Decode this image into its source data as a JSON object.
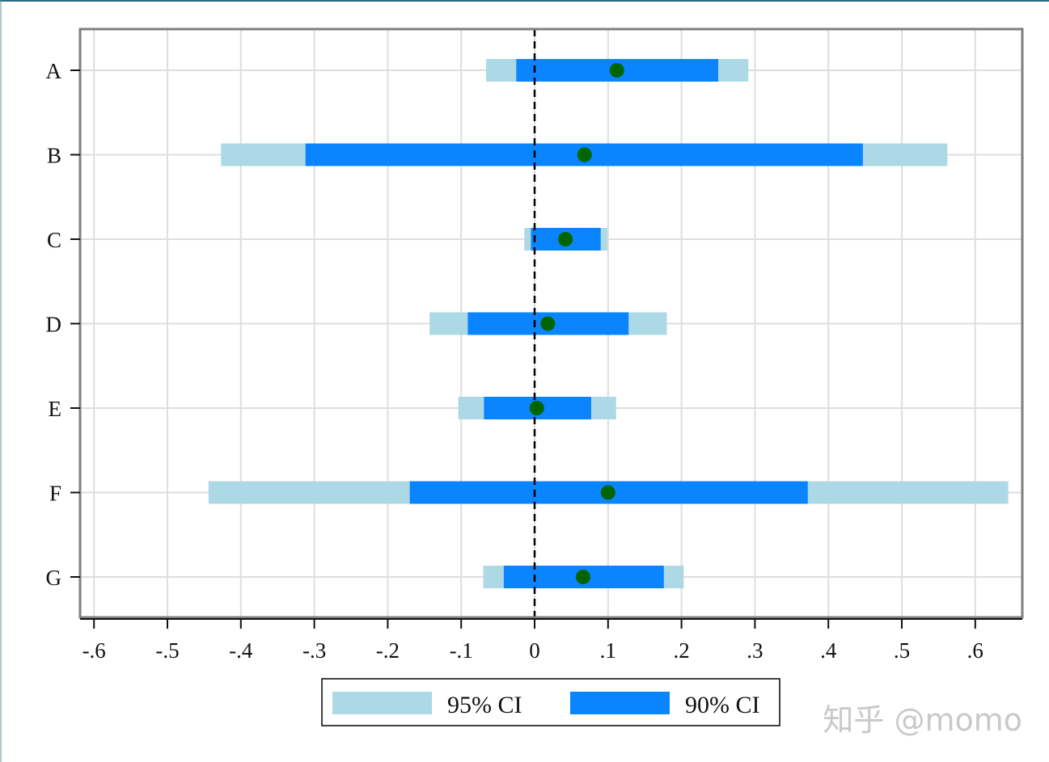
{
  "chart_data": {
    "type": "coefficient-plot",
    "categories": [
      "A",
      "B",
      "C",
      "D",
      "E",
      "F",
      "G"
    ],
    "estimates": [
      0.112,
      0.068,
      0.042,
      0.018,
      0.003,
      0.1,
      0.066
    ],
    "ci95": [
      [
        -0.066,
        0.291
      ],
      [
        -0.427,
        0.562
      ],
      [
        -0.014,
        0.099
      ],
      [
        -0.143,
        0.18
      ],
      [
        -0.104,
        0.111
      ],
      [
        -0.444,
        0.645
      ],
      [
        -0.07,
        0.203
      ]
    ],
    "ci90": [
      [
        -0.025,
        0.25
      ],
      [
        -0.312,
        0.447
      ],
      [
        -0.005,
        0.09
      ],
      [
        -0.091,
        0.128
      ],
      [
        -0.069,
        0.077
      ],
      [
        -0.17,
        0.372
      ],
      [
        -0.042,
        0.176
      ]
    ],
    "x_ticks": [
      -0.6,
      -0.5,
      -0.4,
      -0.3,
      -0.2,
      -0.1,
      0,
      0.1,
      0.2,
      0.3,
      0.4,
      0.5,
      0.6
    ],
    "x_tick_labels": [
      "-.6",
      "-.5",
      "-.4",
      "-.3",
      "-.2",
      "-.1",
      "0",
      ".1",
      ".2",
      ".3",
      ".4",
      ".5",
      ".6"
    ],
    "xlim": [
      -0.62,
      0.665
    ],
    "reference_line": 0,
    "grid": true,
    "legend": {
      "placement": "bottom",
      "entries": [
        {
          "label": "95% CI",
          "color": "#add8e6"
        },
        {
          "label": "90% CI",
          "color": "#0a85ff"
        }
      ]
    },
    "colors": {
      "ci95": "#add8e6",
      "ci90": "#0a85ff",
      "point": "#006400",
      "grid": "#dedede",
      "frame": "#7f7f7f",
      "reference": "#000000"
    }
  },
  "watermark": "知乎 @momo"
}
